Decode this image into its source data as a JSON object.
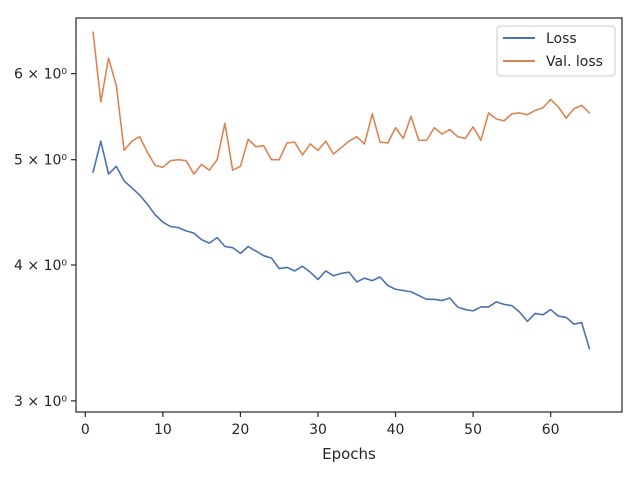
{
  "chart_data": {
    "type": "line",
    "xlabel": "Epochs",
    "ylabel": "",
    "yscale": "log",
    "xlim": [
      -1.2,
      69.2
    ],
    "ylim": [
      2.93,
      6.75
    ],
    "xticks": [
      0,
      10,
      20,
      30,
      40,
      50,
      60
    ],
    "xtick_labels": [
      "0",
      "10",
      "20",
      "30",
      "40",
      "50",
      "60"
    ],
    "yticks": [
      3,
      4,
      5,
      6
    ],
    "ytick_labels": [
      "3 × 10⁰",
      "4 × 10⁰",
      "5 × 10⁰",
      "6 × 10⁰"
    ],
    "legend_position": "top-right",
    "grid": false,
    "x": [
      1,
      2,
      3,
      4,
      5,
      6,
      7,
      8,
      9,
      10,
      11,
      12,
      13,
      14,
      15,
      16,
      17,
      18,
      19,
      20,
      21,
      22,
      23,
      24,
      25,
      26,
      27,
      28,
      29,
      30,
      31,
      32,
      33,
      34,
      35,
      36,
      37,
      38,
      39,
      40,
      41,
      42,
      43,
      44,
      45,
      46,
      47,
      48,
      49,
      50,
      51,
      52,
      53,
      54,
      55,
      56,
      57,
      58,
      59,
      60,
      61,
      62,
      63,
      64,
      65
    ],
    "series": [
      {
        "name": "Loss",
        "color": "#4c72b0",
        "values": [
          4.87,
          5.2,
          4.85,
          4.93,
          4.78,
          4.71,
          4.64,
          4.55,
          4.45,
          4.38,
          4.34,
          4.33,
          4.3,
          4.28,
          4.22,
          4.19,
          4.24,
          4.16,
          4.15,
          4.1,
          4.16,
          4.12,
          4.08,
          4.06,
          3.97,
          3.98,
          3.95,
          3.99,
          3.94,
          3.88,
          3.95,
          3.91,
          3.93,
          3.94,
          3.86,
          3.89,
          3.87,
          3.9,
          3.83,
          3.8,
          3.79,
          3.78,
          3.75,
          3.72,
          3.72,
          3.71,
          3.73,
          3.66,
          3.64,
          3.63,
          3.66,
          3.66,
          3.7,
          3.68,
          3.67,
          3.62,
          3.55,
          3.61,
          3.6,
          3.64,
          3.59,
          3.58,
          3.53,
          3.54,
          3.35
        ]
      },
      {
        "name": "Val. loss",
        "color": "#dd8452",
        "values": [
          6.55,
          5.65,
          6.2,
          5.85,
          5.1,
          5.2,
          5.25,
          5.08,
          4.94,
          4.92,
          4.99,
          5.0,
          4.99,
          4.85,
          4.95,
          4.89,
          5.0,
          5.4,
          4.89,
          4.93,
          5.22,
          5.14,
          5.15,
          5.0,
          5.0,
          5.18,
          5.19,
          5.05,
          5.17,
          5.1,
          5.2,
          5.06,
          5.13,
          5.2,
          5.25,
          5.17,
          5.51,
          5.19,
          5.18,
          5.35,
          5.23,
          5.48,
          5.21,
          5.21,
          5.35,
          5.28,
          5.33,
          5.25,
          5.23,
          5.36,
          5.21,
          5.52,
          5.45,
          5.43,
          5.51,
          5.52,
          5.5,
          5.55,
          5.58,
          5.68,
          5.59,
          5.46,
          5.57,
          5.61,
          5.52
        ]
      }
    ]
  }
}
